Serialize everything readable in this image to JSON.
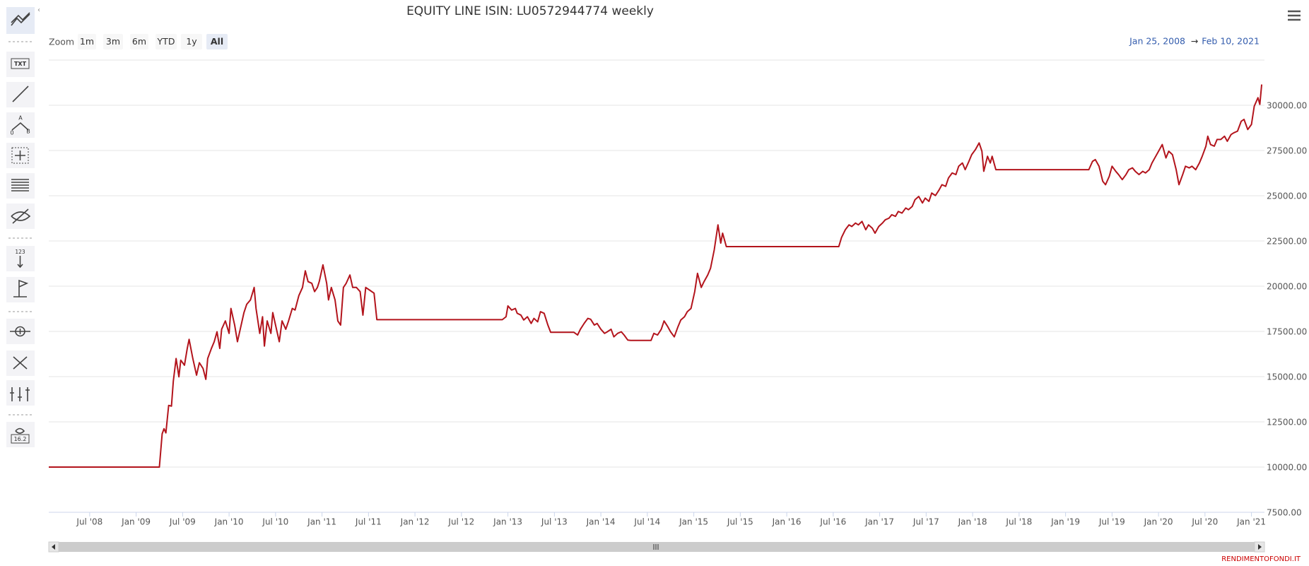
{
  "chart_data": {
    "type": "line",
    "title": "EQUITY LINE ISIN: LU0572944774 weekly",
    "x": [
      2008.06,
      2009.25,
      2009.28,
      2009.3,
      2009.32,
      2009.35,
      2009.38,
      2009.4,
      2009.43,
      2009.46,
      2009.48,
      2009.52,
      2009.55,
      2009.57,
      2009.61,
      2009.65,
      2009.68,
      2009.72,
      2009.75,
      2009.77,
      2009.81,
      2009.84,
      2009.87,
      2009.9,
      2009.92,
      2009.96,
      2010.0,
      2010.02,
      2010.06,
      2010.09,
      2010.12,
      2010.16,
      2010.19,
      2010.23,
      2010.27,
      2010.29,
      2010.33,
      2010.36,
      2010.38,
      2010.41,
      2010.45,
      2010.47,
      2010.51,
      2010.54,
      2010.57,
      2010.61,
      2010.64,
      2010.68,
      2010.71,
      2010.75,
      2010.79,
      2010.82,
      2010.85,
      2010.89,
      2010.92,
      2010.95,
      2010.97,
      2011.01,
      2011.05,
      2011.07,
      2011.1,
      2011.14,
      2011.17,
      2011.2,
      2011.23,
      2011.26,
      2011.3,
      2011.33,
      2011.37,
      2011.41,
      2011.44,
      2011.47,
      2011.51,
      2011.56,
      2011.59,
      2012.94,
      2012.98,
      2013.0,
      2013.04,
      2013.08,
      2013.1,
      2013.14,
      2013.17,
      2013.21,
      2013.25,
      2013.28,
      2013.32,
      2013.35,
      2013.39,
      2013.43,
      2013.46,
      2013.71,
      2013.75,
      2013.78,
      2013.82,
      2013.86,
      2013.89,
      2013.93,
      2013.96,
      2014.0,
      2014.04,
      2014.07,
      2014.11,
      2014.14,
      2014.18,
      2014.22,
      2014.25,
      2014.29,
      2014.32,
      2014.54,
      2014.57,
      2014.61,
      2014.65,
      2014.68,
      2014.72,
      2014.75,
      2014.79,
      2014.83,
      2014.86,
      2014.9,
      2014.93,
      2014.97,
      2015.01,
      2015.04,
      2015.08,
      2015.11,
      2015.15,
      2015.18,
      2015.22,
      2015.26,
      2015.29,
      2015.31,
      2015.35,
      2016.56,
      2016.59,
      2016.63,
      2016.67,
      2016.7,
      2016.74,
      2016.77,
      2016.81,
      2016.85,
      2016.88,
      2016.92,
      2016.95,
      2016.99,
      2017.03,
      2017.06,
      2017.1,
      2017.13,
      2017.17,
      2017.2,
      2017.24,
      2017.28,
      2017.31,
      2017.35,
      2017.38,
      2017.42,
      2017.46,
      2017.49,
      2017.53,
      2017.56,
      2017.6,
      2017.64,
      2017.67,
      2017.71,
      2017.74,
      2017.78,
      2017.82,
      2017.85,
      2017.89,
      2017.92,
      2017.96,
      2017.99,
      2018.03,
      2018.07,
      2018.1,
      2018.12,
      2018.16,
      2018.19,
      2018.21,
      2018.25,
      2019.25,
      2019.29,
      2019.32,
      2019.36,
      2019.4,
      2019.43,
      2019.47,
      2019.5,
      2019.54,
      2019.57,
      2019.61,
      2019.65,
      2019.68,
      2019.72,
      2019.75,
      2019.79,
      2019.83,
      2019.86,
      2019.9,
      2019.93,
      2019.97,
      2020.01,
      2020.04,
      2020.08,
      2020.11,
      2020.15,
      2020.19,
      2020.22,
      2020.26,
      2020.29,
      2020.33,
      2020.36,
      2020.4,
      2020.44,
      2020.47,
      2020.51,
      2020.53,
      2020.56,
      2020.6,
      2020.63,
      2020.67,
      2020.71,
      2020.74,
      2020.78,
      2020.81,
      2020.85,
      2020.89,
      2020.92,
      2020.96,
      2021.0,
      2021.03,
      2021.07,
      2021.09,
      2021.11
    ],
    "series": [
      {
        "color": "#b3141c",
        "values": [
          10000,
          10000,
          11840,
          12120,
          11890,
          13410,
          13370,
          14750,
          16000,
          14990,
          15910,
          15630,
          16560,
          17060,
          16000,
          15080,
          15770,
          15450,
          14850,
          16000,
          16560,
          16930,
          17480,
          16560,
          17620,
          18080,
          17390,
          18770,
          17850,
          16930,
          17620,
          18540,
          19000,
          19240,
          19930,
          18770,
          17390,
          18310,
          16690,
          18080,
          17390,
          18540,
          17620,
          16930,
          18080,
          17620,
          18080,
          18770,
          18680,
          19470,
          19930,
          20850,
          20250,
          20160,
          19700,
          19930,
          20250,
          21180,
          20160,
          19240,
          19930,
          19240,
          18080,
          17850,
          19930,
          20160,
          20620,
          19930,
          19930,
          19700,
          18400,
          19930,
          19790,
          19610,
          18150,
          18150,
          18310,
          18910,
          18680,
          18770,
          18500,
          18400,
          18130,
          18310,
          17940,
          18220,
          18030,
          18590,
          18500,
          17850,
          17450,
          17450,
          17300,
          17620,
          17940,
          18220,
          18170,
          17850,
          17940,
          17620,
          17390,
          17480,
          17620,
          17200,
          17390,
          17480,
          17300,
          17020,
          17000,
          17000,
          17390,
          17300,
          17620,
          18080,
          17760,
          17480,
          17200,
          17760,
          18130,
          18310,
          18590,
          18770,
          19700,
          20710,
          19930,
          20250,
          20620,
          20990,
          22010,
          23390,
          22380,
          22930,
          22190,
          22190,
          22700,
          23120,
          23390,
          23300,
          23490,
          23390,
          23580,
          23120,
          23390,
          23210,
          22930,
          23300,
          23490,
          23670,
          23760,
          23950,
          23860,
          24130,
          24040,
          24320,
          24230,
          24410,
          24780,
          24960,
          24600,
          24870,
          24690,
          25150,
          25010,
          25330,
          25610,
          25520,
          25980,
          26260,
          26170,
          26630,
          26810,
          26440,
          26900,
          27270,
          27550,
          27920,
          27460,
          26350,
          27180,
          26810,
          27180,
          26440,
          26440,
          26900,
          27000,
          26630,
          25800,
          25610,
          26070,
          26630,
          26350,
          26170,
          25890,
          26170,
          26440,
          26540,
          26350,
          26170,
          26350,
          26260,
          26440,
          26810,
          27180,
          27550,
          27830,
          27090,
          27460,
          27270,
          26440,
          25610,
          26170,
          26630,
          26540,
          26630,
          26440,
          26810,
          27180,
          27740,
          28290,
          27830,
          27740,
          28110,
          28110,
          28290,
          28010,
          28380,
          28480,
          28570,
          29120,
          29220,
          28660,
          28940,
          29950,
          30420,
          30050,
          31150
        ]
      }
    ],
    "xlim": [
      2008.06,
      2021.14
    ],
    "xticks": [
      {
        "value": 2008.5,
        "label": "Jul '08"
      },
      {
        "value": 2009.0,
        "label": "Jan '09"
      },
      {
        "value": 2009.5,
        "label": "Jul '09"
      },
      {
        "value": 2010.0,
        "label": "Jan '10"
      },
      {
        "value": 2010.5,
        "label": "Jul '10"
      },
      {
        "value": 2011.0,
        "label": "Jan '11"
      },
      {
        "value": 2011.5,
        "label": "Jul '11"
      },
      {
        "value": 2012.0,
        "label": "Jan '12"
      },
      {
        "value": 2012.5,
        "label": "Jul '12"
      },
      {
        "value": 2013.0,
        "label": "Jan '13"
      },
      {
        "value": 2013.5,
        "label": "Jul '13"
      },
      {
        "value": 2014.0,
        "label": "Jan '14"
      },
      {
        "value": 2014.5,
        "label": "Jul '14"
      },
      {
        "value": 2015.0,
        "label": "Jan '15"
      },
      {
        "value": 2015.5,
        "label": "Jul '15"
      },
      {
        "value": 2016.0,
        "label": "Jan '16"
      },
      {
        "value": 2016.5,
        "label": "Jul '16"
      },
      {
        "value": 2017.0,
        "label": "Jan '17"
      },
      {
        "value": 2017.5,
        "label": "Jul '17"
      },
      {
        "value": 2018.0,
        "label": "Jan '18"
      },
      {
        "value": 2018.5,
        "label": "Jul '18"
      },
      {
        "value": 2019.0,
        "label": "Jan '19"
      },
      {
        "value": 2019.5,
        "label": "Jul '19"
      },
      {
        "value": 2020.0,
        "label": "Jan '20"
      },
      {
        "value": 2020.5,
        "label": "Jul '20"
      },
      {
        "value": 2021.0,
        "label": "Jan '21"
      }
    ],
    "ylim": [
      7500,
      32500
    ],
    "yticks": [
      {
        "value": 7500,
        "label": "7500.00"
      },
      {
        "value": 10000,
        "label": "10000.00"
      },
      {
        "value": 12500,
        "label": "12500.00"
      },
      {
        "value": 15000,
        "label": "15000.00"
      },
      {
        "value": 17500,
        "label": "17500.00"
      },
      {
        "value": 20000,
        "label": "20000.00"
      },
      {
        "value": 22500,
        "label": "22500.00"
      },
      {
        "value": 25000,
        "label": "25000.00"
      },
      {
        "value": 27500,
        "label": "27500.00"
      },
      {
        "value": 30000,
        "label": "30000.00"
      }
    ],
    "grid": true
  },
  "range_selector": {
    "label": "Zoom",
    "buttons": [
      "1m",
      "3m",
      "6m",
      "YTD",
      "1y",
      "All"
    ],
    "selected": 5
  },
  "date_range": {
    "from": "Jan 25, 2008",
    "arrow": "→",
    "to": "Feb 10, 2021"
  },
  "credits": "RENDIMENTOFONDI.IT",
  "toolbar": {
    "txt": "TXT",
    "a": "A",
    "zero": "0",
    "b": "B",
    "count": "123",
    "value": "16.2"
  }
}
